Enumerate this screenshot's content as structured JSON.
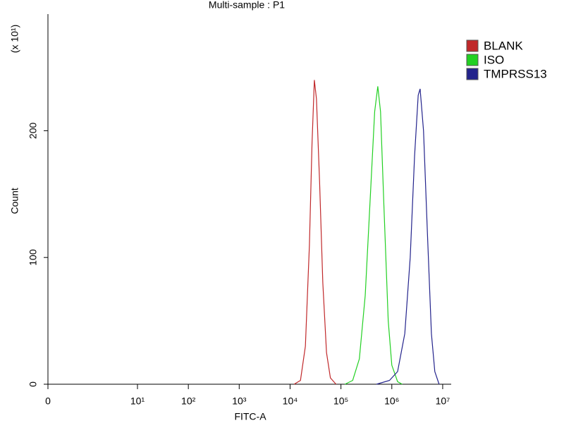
{
  "chart_data": {
    "type": "line",
    "title": "Multi-sample : P1",
    "x_label": "FITC-A",
    "y_label": "Count",
    "y_multiplier": "(x 10¹)",
    "xscale": "symlog",
    "linthresh": 10,
    "xlim": [
      0,
      14700000
    ],
    "ylim": [
      0,
      292
    ],
    "xticks": [
      0,
      {
        "value": 10,
        "label": "10¹"
      },
      {
        "value": 100,
        "label": "10²"
      },
      {
        "value": 1000,
        "label": "10³"
      },
      {
        "value": 10000,
        "label": "10⁴"
      },
      {
        "value": 100000,
        "label": "10⁵"
      },
      {
        "value": 1000000,
        "label": "10⁶"
      },
      {
        "value": 10000000,
        "label": "10⁷"
      }
    ],
    "yticks": [
      0,
      100,
      200
    ],
    "legend": "upper right",
    "series": [
      {
        "name": "BLANK",
        "color": "#c0282a",
        "x": [
          12000,
          16000,
          20000,
          24000,
          27000,
          30000,
          33000,
          38000,
          44000,
          52000,
          62000,
          80000
        ],
        "values": [
          0,
          3,
          30,
          110,
          190,
          240,
          225,
          160,
          80,
          25,
          5,
          0
        ]
      },
      {
        "name": "ISO",
        "color": "#22d022",
        "x": [
          120000,
          170000,
          230000,
          300000,
          380000,
          460000,
          530000,
          600000,
          700000,
          850000,
          1000000,
          1300000,
          1600000
        ],
        "values": [
          0,
          3,
          20,
          70,
          150,
          215,
          235,
          215,
          140,
          50,
          15,
          2,
          0
        ]
      },
      {
        "name": "TMPRSS13",
        "color": "#23238c",
        "x": [
          500000,
          900000,
          1300000,
          1800000,
          2300000,
          2800000,
          3300000,
          3600000,
          4200000,
          5000000,
          6000000,
          7000000,
          8500000
        ],
        "values": [
          0,
          3,
          10,
          40,
          100,
          180,
          228,
          233,
          200,
          120,
          40,
          10,
          0
        ]
      }
    ]
  }
}
